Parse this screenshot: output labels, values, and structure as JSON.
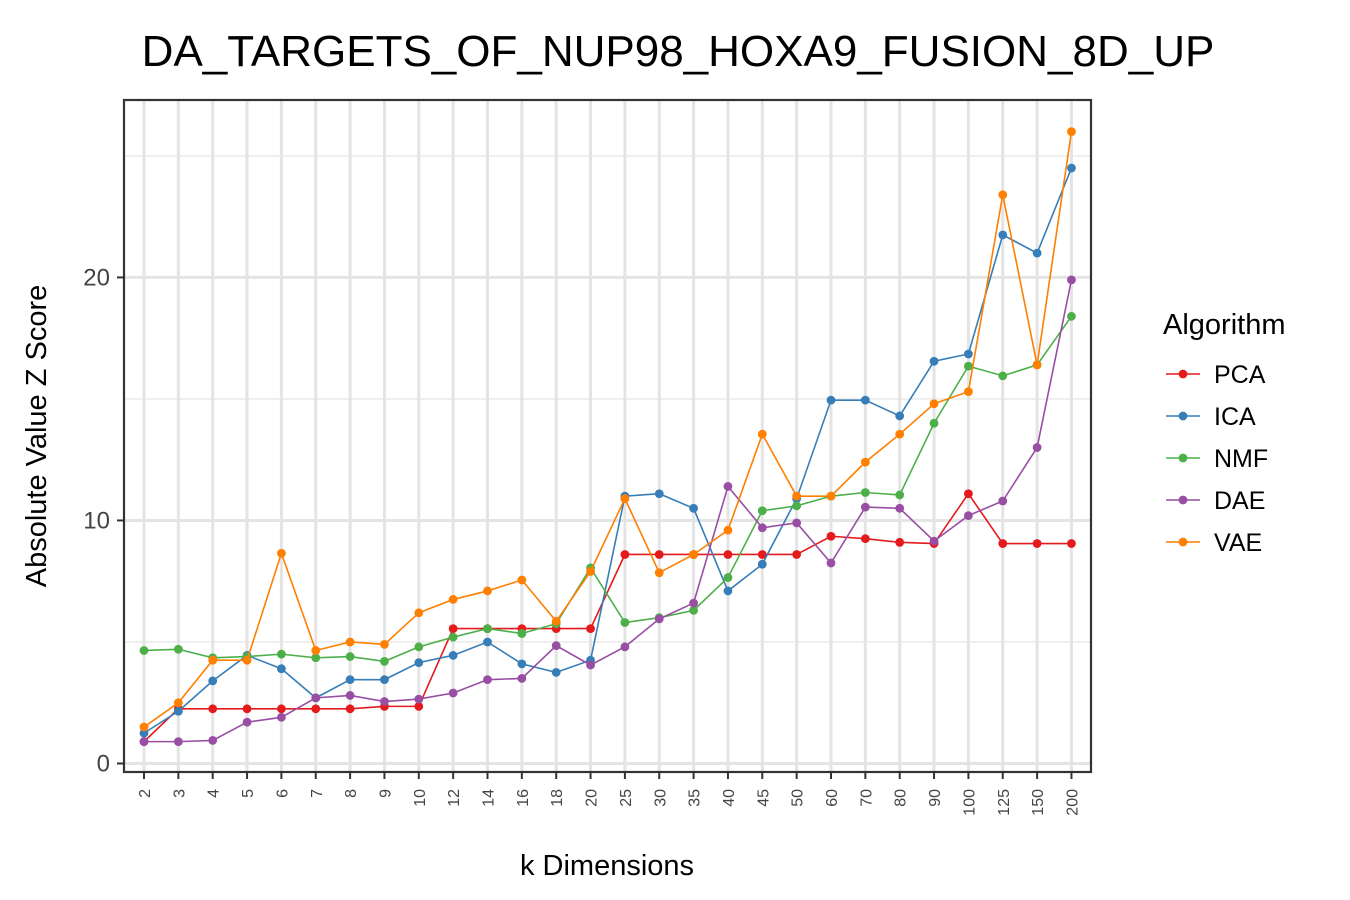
{
  "chart_data": {
    "type": "line",
    "title": "DA_TARGETS_OF_NUP98_HOXA9_FUSION_8D_UP",
    "xlabel": "k Dimensions",
    "ylabel": "Absolute Value Z Score",
    "ylim": [
      -0.35,
      27.3
    ],
    "yticks": [
      0,
      10,
      20
    ],
    "grid": true,
    "legend_title": "Algorithm",
    "legend_position": "right",
    "categories": [
      "2",
      "3",
      "4",
      "5",
      "6",
      "7",
      "8",
      "9",
      "10",
      "12",
      "14",
      "16",
      "18",
      "20",
      "25",
      "30",
      "35",
      "40",
      "45",
      "50",
      "60",
      "70",
      "80",
      "90",
      "100",
      "125",
      "150",
      "200"
    ],
    "series": [
      {
        "name": "PCA",
        "color": "#E41A1C",
        "values": [
          0.9,
          2.25,
          2.25,
          2.25,
          2.25,
          2.25,
          2.25,
          2.35,
          2.35,
          5.55,
          5.55,
          5.55,
          5.55,
          5.55,
          8.6,
          8.6,
          8.6,
          8.6,
          8.6,
          8.6,
          9.35,
          9.25,
          9.1,
          9.05,
          11.1,
          9.05,
          9.05,
          9.05
        ]
      },
      {
        "name": "ICA",
        "color": "#377EB8",
        "values": [
          1.25,
          2.15,
          3.4,
          4.45,
          3.9,
          2.7,
          3.45,
          3.45,
          4.15,
          4.45,
          5.0,
          4.1,
          3.75,
          4.25,
          11.0,
          11.1,
          10.5,
          7.1,
          8.2,
          10.9,
          14.95,
          14.95,
          14.3,
          16.55,
          16.85,
          21.75,
          21.0,
          24.5
        ]
      },
      {
        "name": "NMF",
        "color": "#4DAF4A",
        "values": [
          4.65,
          4.7,
          4.35,
          4.4,
          4.5,
          4.35,
          4.4,
          4.2,
          4.8,
          5.2,
          5.55,
          5.35,
          5.75,
          8.05,
          5.8,
          6.0,
          6.3,
          7.65,
          10.4,
          10.6,
          11.0,
          11.15,
          11.05,
          14.0,
          16.35,
          15.95,
          16.4,
          18.4
        ]
      },
      {
        "name": "DAE",
        "color": "#984EA3",
        "values": [
          0.9,
          0.9,
          0.95,
          1.7,
          1.9,
          2.7,
          2.8,
          2.55,
          2.65,
          2.9,
          3.45,
          3.5,
          4.85,
          4.05,
          4.8,
          5.95,
          6.6,
          11.4,
          9.7,
          9.9,
          8.25,
          10.55,
          10.5,
          9.15,
          10.2,
          10.8,
          13.0,
          19.9
        ]
      },
      {
        "name": "VAE",
        "color": "#FF7F00",
        "values": [
          1.5,
          2.5,
          4.25,
          4.25,
          8.65,
          4.65,
          5.0,
          4.9,
          6.2,
          6.75,
          7.1,
          7.55,
          5.85,
          7.9,
          10.9,
          7.85,
          8.6,
          9.6,
          13.55,
          11.0,
          11.0,
          12.4,
          13.55,
          14.8,
          15.3,
          23.4,
          16.4,
          26.0
        ]
      }
    ]
  }
}
